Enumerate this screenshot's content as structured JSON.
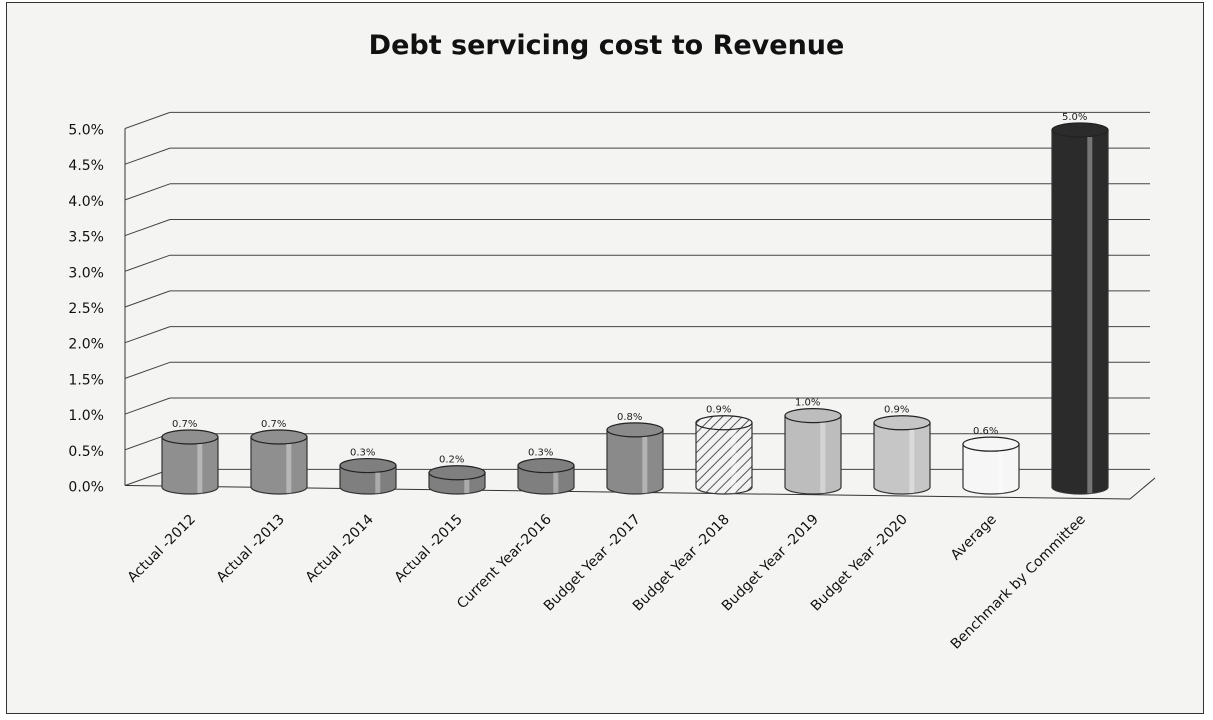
{
  "chart_data": {
    "type": "bar",
    "title": "Debt servicing cost to Revenue",
    "categories": [
      "Actual -2012",
      "Actual -2013",
      "Actual -2014",
      "Actual -2015",
      "Current Year-2016",
      "Budget Year -2017",
      "Budget Year -2018",
      "Budget Year -2019",
      "Budget Year -2020",
      "Average",
      "Benchmark by Committee"
    ],
    "values": [
      0.7,
      0.7,
      0.3,
      0.2,
      0.3,
      0.8,
      0.9,
      1.0,
      0.9,
      0.6,
      5.0
    ],
    "data_labels": [
      "0.7%",
      "0.7%",
      "0.3%",
      "0.2%",
      "0.3%",
      "0.8%",
      "0.9%",
      "1.0%",
      "0.9%",
      "0.6%",
      "5.0%"
    ],
    "y_ticks": [
      "0.0%",
      "0.5%",
      "1.0%",
      "1.5%",
      "2.0%",
      "2.5%",
      "3.0%",
      "3.5%",
      "4.0%",
      "4.5%",
      "5.0%"
    ],
    "ylim": [
      0,
      5.0
    ],
    "grid": true,
    "legend": "none",
    "bar_colors": [
      "#8f8f8f",
      "#8f8f8f",
      "#7f7f7f",
      "#7f7f7f",
      "#7f7f7f",
      "#8a8a8a",
      "#e2e2e2",
      "#bdbdbd",
      "#c6c6c6",
      "#f6f6f6",
      "#2b2b2b"
    ],
    "style": "3d-cylinder"
  }
}
